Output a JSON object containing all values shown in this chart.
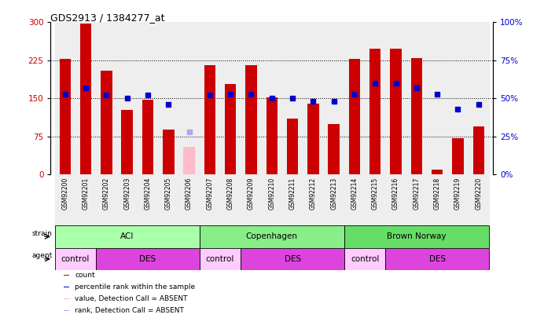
{
  "title": "GDS2913 / 1384277_at",
  "samples": [
    "GSM92200",
    "GSM92201",
    "GSM92202",
    "GSM92203",
    "GSM92204",
    "GSM92205",
    "GSM92206",
    "GSM92207",
    "GSM92208",
    "GSM92209",
    "GSM92210",
    "GSM92211",
    "GSM92212",
    "GSM92213",
    "GSM92214",
    "GSM92215",
    "GSM92216",
    "GSM92217",
    "GSM92218",
    "GSM92219",
    "GSM92220"
  ],
  "counts": [
    228,
    298,
    205,
    128,
    148,
    88,
    55,
    215,
    178,
    215,
    152,
    110,
    140,
    100,
    228,
    248,
    248,
    230,
    10,
    72,
    95
  ],
  "ranks": [
    53,
    57,
    52,
    50,
    52,
    46,
    28,
    52,
    53,
    53,
    50,
    50,
    48,
    48,
    53,
    60,
    60,
    57,
    53,
    43,
    46
  ],
  "absent": [
    false,
    false,
    false,
    false,
    false,
    false,
    true,
    false,
    false,
    false,
    false,
    false,
    false,
    false,
    false,
    false,
    false,
    false,
    false,
    false,
    false
  ],
  "count_ylim": [
    0,
    300
  ],
  "rank_ylim": [
    0,
    100
  ],
  "count_yticks": [
    0,
    75,
    150,
    225,
    300
  ],
  "rank_yticks": [
    0,
    25,
    50,
    75,
    100
  ],
  "bar_color": "#cc0000",
  "bar_absent_color": "#ffbbcc",
  "rank_color": "#0000cc",
  "rank_absent_color": "#aaaaee",
  "grid_lines": [
    75,
    150,
    225
  ],
  "strain_groups": [
    {
      "label": "ACI",
      "start": 0,
      "end": 6,
      "color": "#aaffaa"
    },
    {
      "label": "Copenhagen",
      "start": 7,
      "end": 13,
      "color": "#88ee88"
    },
    {
      "label": "Brown Norway",
      "start": 14,
      "end": 20,
      "color": "#66dd66"
    }
  ],
  "agent_groups": [
    {
      "label": "control",
      "start": 0,
      "end": 1,
      "color": "#ffccff"
    },
    {
      "label": "DES",
      "start": 2,
      "end": 6,
      "color": "#dd44dd"
    },
    {
      "label": "control",
      "start": 7,
      "end": 8,
      "color": "#ffccff"
    },
    {
      "label": "DES",
      "start": 9,
      "end": 13,
      "color": "#dd44dd"
    },
    {
      "label": "control",
      "start": 14,
      "end": 15,
      "color": "#ffccff"
    },
    {
      "label": "DES",
      "start": 16,
      "end": 20,
      "color": "#dd44dd"
    }
  ],
  "legend_items": [
    {
      "label": "count",
      "color": "#cc0000"
    },
    {
      "label": "percentile rank within the sample",
      "color": "#0000cc"
    },
    {
      "label": "value, Detection Call = ABSENT",
      "color": "#ffbbcc"
    },
    {
      "label": "rank, Detection Call = ABSENT",
      "color": "#aaaaee"
    }
  ],
  "col_bg_color": "#e8e8e8",
  "col_bg_color2": "#f0f0f0"
}
